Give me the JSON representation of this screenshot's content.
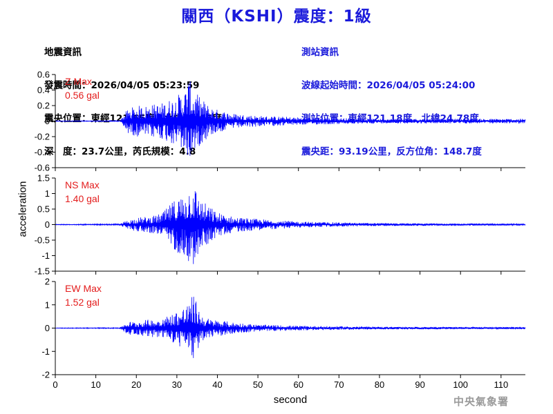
{
  "header": {
    "title": "關西（KSHI）震度：1級",
    "event_info": {
      "heading": "地震資訊",
      "origin_time": "發震時間：2026/04/05 05:23:59",
      "epicenter": "震央位置：東經121.65度，北緯24.06度",
      "depth_magnitude": "深　度：23.7公里，芮氏規模：4.8"
    },
    "station_info": {
      "heading": "測站資訊",
      "arrival_time": "波線起始時間：2026/04/05 05:24:00",
      "location": "測站位置：東經121.18度，北緯24.78度",
      "distance_azimuth": "震央距：93.19公里，反方位角：148.7度"
    }
  },
  "footer": {
    "agency": "中央氣象署"
  },
  "chart_data": {
    "type": "line",
    "xlabel": "second",
    "ylabel": "acceleration",
    "xlim": [
      0,
      116
    ],
    "xticks": [
      0,
      10,
      20,
      30,
      40,
      50,
      60,
      70,
      80,
      90,
      100,
      110
    ],
    "grid": false,
    "line_color": "#0000ff",
    "peak_label_color": "#e31b1b",
    "panels": [
      {
        "name": "Z",
        "peak_label": "Z Max",
        "peak_value": "0.56 gal",
        "ylim": [
          -0.6,
          0.6
        ],
        "yticks": [
          "0.6",
          "0.4",
          "0.2",
          "0",
          "-0.2",
          "-0.4",
          "-0.6"
        ],
        "yticks_values": [
          0.6,
          0.4,
          0.2,
          0,
          -0.2,
          -0.4,
          -0.6
        ],
        "envelope": {
          "t": [
            0,
            16,
            17,
            18,
            20,
            22,
            24,
            26,
            28,
            30,
            32,
            33,
            34,
            36,
            38,
            40,
            44,
            50,
            60,
            70,
            80,
            90,
            100,
            110,
            116
          ],
          "amp": [
            0.003,
            0.005,
            0.1,
            0.16,
            0.2,
            0.2,
            0.22,
            0.23,
            0.28,
            0.33,
            0.42,
            0.56,
            0.4,
            0.3,
            0.2,
            0.15,
            0.1,
            0.07,
            0.05,
            0.04,
            0.03,
            0.03,
            0.03,
            0.03,
            0.03
          ]
        }
      },
      {
        "name": "NS",
        "peak_label": "NS Max",
        "peak_value": "1.40 gal",
        "ylim": [
          -1.5,
          1.5
        ],
        "yticks": [
          "1.5",
          "1",
          "0.5",
          "0",
          "-0.5",
          "-1",
          "-1.5"
        ],
        "yticks_values": [
          1.5,
          1,
          0.5,
          0,
          -0.5,
          -1,
          -1.5
        ],
        "envelope": {
          "t": [
            0,
            16,
            17,
            18,
            20,
            22,
            25,
            27,
            29,
            30,
            31,
            32,
            33,
            34,
            36,
            38,
            40,
            44,
            50,
            60,
            70,
            80,
            90,
            100,
            110,
            116
          ],
          "amp": [
            0.01,
            0.02,
            0.1,
            0.15,
            0.22,
            0.25,
            0.3,
            0.45,
            0.75,
            0.9,
            0.95,
            1.0,
            1.25,
            1.4,
            0.8,
            0.6,
            0.4,
            0.25,
            0.18,
            0.1,
            0.07,
            0.05,
            0.04,
            0.03,
            0.03,
            0.03
          ]
        }
      },
      {
        "name": "EW",
        "peak_label": "EW Max",
        "peak_value": "1.52 gal",
        "ylim": [
          -2,
          2
        ],
        "yticks": [
          "2",
          "1",
          "0",
          "-1",
          "-2"
        ],
        "yticks_values": [
          2,
          1,
          0,
          -1,
          -2
        ],
        "envelope": {
          "t": [
            0,
            16,
            17,
            18,
            20,
            22,
            25,
            28,
            30,
            31,
            32,
            33,
            34,
            36,
            38,
            40,
            44,
            50,
            60,
            70,
            80,
            90,
            100,
            110,
            116
          ],
          "amp": [
            0.01,
            0.02,
            0.18,
            0.28,
            0.3,
            0.35,
            0.4,
            0.55,
            0.75,
            0.85,
            1.0,
            1.05,
            1.52,
            0.6,
            0.4,
            0.35,
            0.25,
            0.15,
            0.1,
            0.08,
            0.06,
            0.05,
            0.04,
            0.04,
            0.04
          ]
        }
      }
    ]
  }
}
